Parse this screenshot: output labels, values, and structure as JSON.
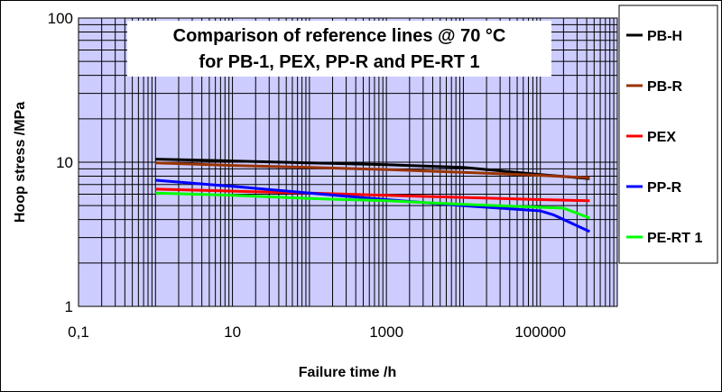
{
  "chart_data": {
    "type": "line",
    "title": [
      "Comparison of reference lines @ 70 °C",
      "for PB-1, PEX, PP-R and PE-RT 1"
    ],
    "xlabel": "Failure time /h",
    "ylabel": "Hoop stress /MPa",
    "x_scale": "log",
    "y_scale": "log",
    "xlim": [
      0.1,
      1000000
    ],
    "ylim": [
      1,
      100
    ],
    "x_ticks": [
      0.1,
      10,
      1000,
      100000
    ],
    "x_tick_labels": [
      "0,1",
      "10",
      "1000",
      "100000"
    ],
    "y_ticks": [
      1,
      10,
      100
    ],
    "y_tick_labels": [
      "1",
      "10",
      "100"
    ],
    "grid": true,
    "plot_background": "#ccccff",
    "legend_position": "right",
    "series": [
      {
        "name": "PB-H",
        "color": "#000000",
        "x": [
          1,
          10,
          100,
          1000,
          10000,
          100000,
          438000
        ],
        "y": [
          10.5,
          10.2,
          9.9,
          9.6,
          9.2,
          8.2,
          7.7
        ]
      },
      {
        "name": "PB-R",
        "color": "#993300",
        "x": [
          1,
          10,
          100,
          1000,
          10000,
          100000,
          438000
        ],
        "y": [
          9.9,
          9.5,
          9.2,
          8.9,
          8.5,
          8.1,
          7.8
        ]
      },
      {
        "name": "PEX",
        "color": "#ff0000",
        "x": [
          1,
          10,
          100,
          1000,
          10000,
          100000,
          438000
        ],
        "y": [
          6.5,
          6.3,
          6.1,
          5.9,
          5.7,
          5.5,
          5.4
        ]
      },
      {
        "name": "PP-R",
        "color": "#0000ff",
        "x": [
          1,
          10,
          100,
          1000,
          10000,
          100000,
          150000,
          438000
        ],
        "y": [
          7.5,
          6.8,
          6.1,
          5.5,
          5.0,
          4.6,
          4.3,
          3.3
        ]
      },
      {
        "name": "PE-RT 1",
        "color": "#00ff00",
        "x": [
          1,
          10,
          100,
          1000,
          10000,
          200000,
          438000
        ],
        "y": [
          6.1,
          5.9,
          5.6,
          5.4,
          5.1,
          4.8,
          4.1
        ]
      }
    ]
  }
}
